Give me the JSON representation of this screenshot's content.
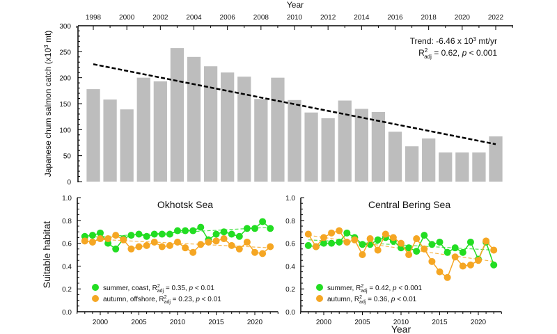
{
  "chart_data": [
    {
      "id": "catch",
      "type": "bar",
      "title": "",
      "xlabel": "Year",
      "ylabel": "Japanese chum salmon catch (x10³ mt)",
      "ylabel_parts": {
        "main": "Japanese chum salmon catch (x10",
        "sup": "3",
        "end": " mt)"
      },
      "ylim": [
        0,
        300
      ],
      "yticks": [
        0,
        50,
        100,
        150,
        200,
        250,
        300
      ],
      "xticks": [
        1998,
        2000,
        2002,
        2004,
        2006,
        2008,
        2010,
        2012,
        2014,
        2016,
        2018,
        2020,
        2022
      ],
      "xaxis_position": "top",
      "categories": [
        1998,
        1999,
        2000,
        2001,
        2002,
        2003,
        2004,
        2005,
        2006,
        2007,
        2008,
        2009,
        2010,
        2011,
        2012,
        2013,
        2014,
        2015,
        2016,
        2017,
        2018,
        2019,
        2020,
        2021,
        2022
      ],
      "values": [
        178,
        158,
        139,
        200,
        193,
        257,
        240,
        222,
        210,
        202,
        159,
        200,
        157,
        133,
        122,
        156,
        140,
        134,
        96,
        68,
        83,
        56,
        56,
        56,
        87
      ],
      "bar_color": "#bdbdbd",
      "trend": {
        "x": [
          1998,
          2022
        ],
        "y": [
          226,
          72
        ],
        "style": "dashed",
        "color": "#000000"
      },
      "annotation": {
        "line1": "Trend: -6.46 x 10",
        "line1_sup": "3",
        "line1_end": " mt/yr",
        "line2_r": "R",
        "line2_sup": "2",
        "line2_sub": "adj",
        "line2_mid": " = 0.62, ",
        "line2_p": "p",
        "line2_end": " < 0.001"
      },
      "grid": false
    },
    {
      "id": "okhotsk",
      "type": "line",
      "title": "Okhotsk Sea",
      "xlabel": "",
      "ylabel": "Suitable habitat",
      "ylim": [
        0,
        1.0
      ],
      "xlim": [
        1997,
        2023
      ],
      "yticks": [
        "0.0",
        "0.2",
        "0.4",
        "0.6",
        "0.8",
        "1.0"
      ],
      "xticks": [
        2000,
        2005,
        2010,
        2015,
        2020
      ],
      "x": [
        1998,
        1999,
        2000,
        2001,
        2002,
        2003,
        2004,
        2005,
        2006,
        2007,
        2008,
        2009,
        2010,
        2011,
        2012,
        2013,
        2014,
        2015,
        2016,
        2017,
        2018,
        2019,
        2020,
        2021,
        2022
      ],
      "series": [
        {
          "name": "summer, coast",
          "color": "#22dd22",
          "values": [
            0.66,
            0.67,
            0.69,
            0.6,
            0.55,
            0.64,
            0.67,
            0.68,
            0.66,
            0.68,
            0.68,
            0.68,
            0.71,
            0.71,
            0.71,
            0.74,
            0.63,
            0.68,
            0.7,
            0.68,
            0.66,
            0.73,
            0.73,
            0.79,
            0.73
          ],
          "trend": [
            0.65,
            0.74
          ],
          "legend": {
            "label": "summer, coast, R",
            "sup": "2",
            "sub": "adj",
            "mid": " = 0.35, ",
            "p": "p",
            "end": " < 0.01"
          }
        },
        {
          "name": "autumn, offshore",
          "color": "#f5a623",
          "values": [
            0.62,
            0.61,
            0.64,
            0.64,
            0.67,
            0.63,
            0.55,
            0.57,
            0.58,
            0.61,
            0.57,
            0.58,
            0.61,
            0.56,
            0.52,
            0.59,
            0.61,
            0.62,
            0.64,
            0.58,
            0.55,
            0.61,
            0.52,
            0.51,
            0.57
          ],
          "trend": [
            0.64,
            0.56
          ],
          "legend": {
            "label": "autumn, offshore, R",
            "sup": "2",
            "sub": "adj",
            "mid": " = 0.23, ",
            "p": "p",
            "end": " < 0.01"
          }
        }
      ],
      "legend_position": "bottom-left",
      "grid": false
    },
    {
      "id": "bering",
      "type": "line",
      "title": "Central Bering Sea",
      "xlabel": "Year",
      "ylabel": "",
      "ylim": [
        0,
        1.0
      ],
      "xlim": [
        1997,
        2023
      ],
      "yticks": [
        "0.0",
        "0.2",
        "0.4",
        "0.6",
        "0.8",
        "1.0"
      ],
      "xticks": [
        2000,
        2005,
        2010,
        2015,
        2020
      ],
      "x": [
        1998,
        1999,
        2000,
        2001,
        2002,
        2003,
        2004,
        2005,
        2006,
        2007,
        2008,
        2009,
        2010,
        2011,
        2012,
        2013,
        2014,
        2015,
        2016,
        2017,
        2018,
        2019,
        2020,
        2021,
        2022
      ],
      "series": [
        {
          "name": "summer",
          "color": "#22dd22",
          "values": [
            0.58,
            0.57,
            0.6,
            0.6,
            0.61,
            0.69,
            0.65,
            0.59,
            0.59,
            0.63,
            0.65,
            0.62,
            0.56,
            0.56,
            0.53,
            0.67,
            0.59,
            0.61,
            0.52,
            0.56,
            0.52,
            0.61,
            0.46,
            0.61,
            0.41
          ],
          "trend": [
            0.63,
            0.54
          ],
          "legend": {
            "label": "summer, R",
            "sup": "2",
            "sub": "adj",
            "mid": " = 0.42, ",
            "p": "p",
            "end": " < 0.001"
          }
        },
        {
          "name": "autumn",
          "color": "#f5a623",
          "values": [
            0.68,
            0.57,
            0.65,
            0.69,
            0.71,
            0.61,
            0.63,
            0.5,
            0.64,
            0.54,
            0.68,
            0.65,
            0.6,
            0.5,
            0.64,
            0.55,
            0.44,
            0.35,
            0.3,
            0.48,
            0.4,
            0.41,
            0.45,
            0.62,
            0.54
          ],
          "trend": [
            0.67,
            0.44
          ],
          "legend": {
            "label": "autumn,  R",
            "sup": "2",
            "sub": "adj",
            "mid": " = 0.36, ",
            "p": "p",
            "end": " < 0.01"
          }
        }
      ],
      "legend_position": "bottom-left",
      "grid": false
    }
  ]
}
